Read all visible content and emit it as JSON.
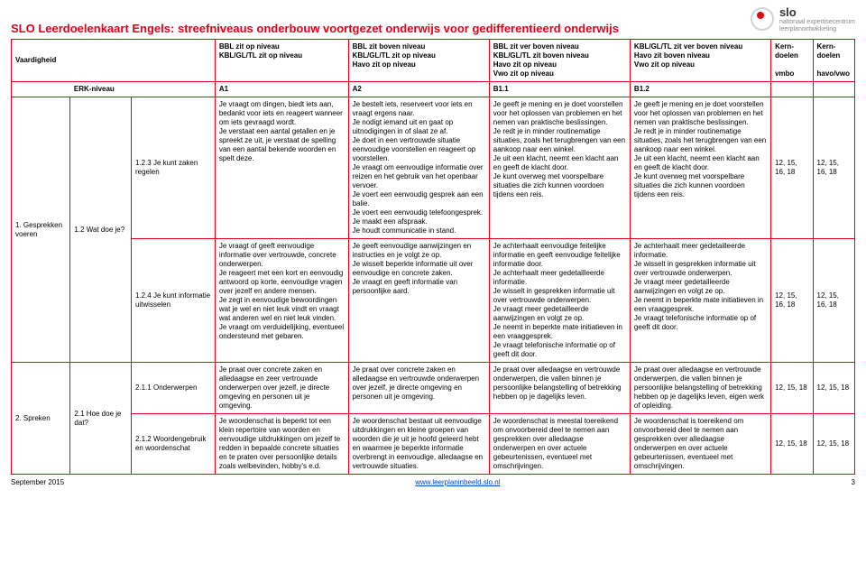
{
  "logo": {
    "name": "slo",
    "sub1": "nationaal expertisecentrum",
    "sub2": "leerplanontwikkeling"
  },
  "title": "SLO Leerdoelenkaart Engels: streefniveaus onderbouw voortgezet onderwijs voor gedifferentieerd onderwijs",
  "header": {
    "skill": "Vaardigheid",
    "c3": "BBL zit op niveau\nKBL/GL/TL zit op niveau",
    "c4": "BBL zit boven niveau\nKBL/GL/TL zit op niveau\nHavo zit op niveau",
    "c5": "BBL zit ver boven niveau\nKBL/GL/TL zit boven niveau\nHavo zit op niveau\nVwo zit op niveau",
    "c6": "KBL/GL/TL zit ver boven niveau\nHavo zit boven niveau\nVwo zit op niveau",
    "c7a": "Kern-\ndoelen",
    "c7b": "vmbo",
    "c8a": "Kern-\ndoelen",
    "c8b": "havo/vwo"
  },
  "erk": {
    "label": "ERK-niveau",
    "a1": "A1",
    "a2": "A2",
    "b11": "B1.1",
    "b12": "B1.2"
  },
  "skill1": "1. Gesprekken voeren",
  "skill1_sub": "1.2 Wat doe je?",
  "row1": {
    "label": "1.2.3 Je kunt zaken regelen",
    "a1": "Je vraagt om dingen, biedt iets aan, bedankt voor iets en reageert wanneer om iets gevraagd wordt.\nJe verstaat een aantal getallen en je spreekt ze uit, je verstaat de spelling van een aantal bekende woorden en spelt deze.",
    "a2": "Je bestelt iets, reserveert voor iets en vraagt ergens naar.\nJe nodigt iemand uit en gaat op uitnodigingen in of slaat ze af.\nJe doet in een vertrouwde situatie eenvoudige voorstellen en reageert op voorstellen.\nJe vraagt om eenvoudige informatie over reizen en het gebruik van het openbaar vervoer.\nJe voert een eenvoudig gesprek aan een balie.\nJe voert een eenvoudig telefoongesprek.\nJe maakt een afspraak.\nJe houdt communicatie in stand.",
    "b11": "Je geeft je mening en je doet voorstellen voor het oplossen van problemen en het nemen van praktische beslissingen.\nJe redt je in minder routinematige situaties, zoals het terugbrengen van een aankoop naar een winkel.\nJe uit een klacht, neemt een klacht aan en geeft de klacht door.\nJe kunt overweg met voorspelbare situaties die zich kunnen voordoen tijdens een reis.",
    "b12": "Je geeft je mening en je doet voorstellen voor het oplossen van problemen en het nemen van praktische beslissingen.\nJe redt je in minder routinematige situaties, zoals het terugbrengen van een aankoop naar een winkel.\nJe uit een klacht, neemt een klacht aan en geeft de klacht door.\nJe kunt overweg met voorspelbare situaties die zich kunnen voordoen tijdens een reis.",
    "k1": "12, 15, 16, 18",
    "k2": "12, 15, 16, 18"
  },
  "row2": {
    "label": "1.2.4 Je kunt informatie uitwisselen",
    "a1": "Je vraagt of geeft eenvoudige informatie over vertrouwde, concrete onderwerpen.\nJe reageert met een kort en eenvoudig antwoord op korte, eenvoudige vragen over jezelf en andere mensen.\nJe zegt in eenvoudige bewoordingen wat je wel en niet leuk vindt en vraagt wat anderen wel en niet leuk vinden.\nJe vraagt om verduidelijking, eventueel ondersteund met gebaren.",
    "a2": "Je geeft eenvoudige aanwijzingen en instructies en je volgt ze op.\nJe wisselt beperkte informatie uit over eenvoudige en concrete zaken.\nJe vraagt en geeft informatie van persoonlijke aard.",
    "b11": "Je achterhaalt eenvoudige feitelijke informatie en geeft eenvoudige feitelijke informatie door.\nJe achterhaalt meer gedetailleerde informatie.\nJe wisselt in gesprekken informatie uit over vertrouwde onderwerpen.\nJe vraagt meer gedetailleerde aanwijzingen en volgt ze op.\nJe neemt in beperkte mate initiatieven in een vraaggesprek.\nJe vraagt telefonische informatie op of geeft dit door.",
    "b12": "Je achterhaalt meer gedetailleerde informatie.\nJe wisselt in gesprekken informatie uit over vertrouwde onderwerpen.\nJe vraagt meer gedetailleerde aanwijzingen en volgt ze op.\nJe neemt in beperkte mate initiatieven in een vraaggesprek.\nJe vraagt telefonische informatie op of geeft dit door.",
    "k1": "12, 15, 16, 18",
    "k2": "12, 15, 16, 18"
  },
  "skill2": "2. Spreken",
  "skill2_sub": "2.1 Hoe doe je dat?",
  "row3": {
    "label": "2.1.1 Onderwerpen",
    "a1": "Je praat over concrete zaken en alledaagse en zeer vertrouwde onderwerpen over jezelf, je directe omgeving en personen uit je omgeving.",
    "a2": "Je praat over concrete zaken en alledaagse en vertrouwde onderwerpen over jezelf, je directe omgeving en personen uit je omgeving.",
    "b11": "Je praat over alledaagse en vertrouwde onderwerpen, die vallen binnen je persoonlijke belangstelling of betrekking hebben op je dagelijks leven.",
    "b12": "Je praat over alledaagse en vertrouwde onderwerpen, die vallen binnen je persoonlijke belangstelling of betrekking hebben op je dagelijks leven, eigen werk of opleiding.",
    "k1": "12, 15, 18",
    "k2": "12, 15, 18"
  },
  "row4": {
    "label": "2.1.2 Woordengebruik en woordenschat",
    "a1": "Je woordenschat is beperkt tot een klein repertoire van woorden en eenvoudige uitdrukkingen om jezelf te redden in bepaalde concrete situaties en te praten over persoonlijke details zoals welbevinden, hobby's e.d.",
    "a2": "Je woordenschat bestaat uit eenvoudige uitdrukkingen en kleine groepen van woorden die je uit je hoofd geleerd hebt en waarmee je beperkte informatie overbrengt in eenvoudige, alledaagse en vertrouwde situaties.",
    "b11": "Je woordenschat is meestal toereikend om onvoorbereid deel te nemen aan gesprekken over alledaagse onderwerpen en over actuele gebeurtenissen, eventueel met omschrijvingen.",
    "b12": "Je woordenschat is toereikend om onvoorbereid deel te nemen aan gesprekken over alledaagse onderwerpen en over actuele gebeurtenissen, eventueel met omschrijvingen.",
    "k1": "12, 15, 18",
    "k2": "12, 15, 18"
  },
  "footer": {
    "date": "September 2015",
    "link": "www.leerplaninbeeld.slo.nl",
    "page": "3"
  }
}
